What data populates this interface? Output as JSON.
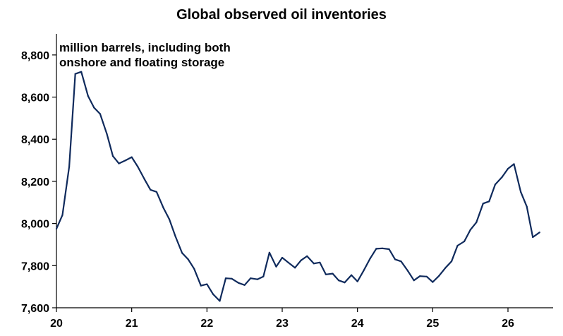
{
  "chart_data": {
    "type": "line",
    "title": "Global observed oil inventories",
    "annotation_lines": [
      "million barrels, including both",
      "onshore and floating storage"
    ],
    "xlabel": "",
    "ylabel": "",
    "xlim": [
      20,
      26.6
    ],
    "ylim": [
      7600,
      8900
    ],
    "x_ticks": [
      20,
      21,
      22,
      23,
      24,
      25,
      26
    ],
    "x_tick_labels": [
      "20",
      "21",
      "22",
      "23",
      "24",
      "25",
      "26"
    ],
    "y_ticks": [
      7600,
      7800,
      8000,
      8200,
      8400,
      8600,
      8800
    ],
    "y_tick_labels": [
      "7,600",
      "7,800",
      "8,000",
      "8,200",
      "8,400",
      "8,600",
      "8,800"
    ],
    "grid": false,
    "line_color": "#0f2a5c",
    "series": [
      {
        "values": [
          [
            20.0,
            7975
          ],
          [
            20.08,
            8040
          ],
          [
            20.17,
            8270
          ],
          [
            20.25,
            8710
          ],
          [
            20.33,
            8720
          ],
          [
            20.42,
            8605
          ],
          [
            20.5,
            8550
          ],
          [
            20.58,
            8520
          ],
          [
            20.67,
            8425
          ],
          [
            20.75,
            8320
          ],
          [
            20.83,
            8285
          ],
          [
            20.92,
            8300
          ],
          [
            21.0,
            8315
          ],
          [
            21.08,
            8270
          ],
          [
            21.17,
            8210
          ],
          [
            21.25,
            8160
          ],
          [
            21.33,
            8150
          ],
          [
            21.42,
            8075
          ],
          [
            21.5,
            8020
          ],
          [
            21.58,
            7940
          ],
          [
            21.67,
            7860
          ],
          [
            21.75,
            7830
          ],
          [
            21.83,
            7785
          ],
          [
            21.92,
            7705
          ],
          [
            22.0,
            7712
          ],
          [
            22.08,
            7665
          ],
          [
            22.17,
            7632
          ],
          [
            22.25,
            7740
          ],
          [
            22.33,
            7738
          ],
          [
            22.42,
            7718
          ],
          [
            22.5,
            7708
          ],
          [
            22.58,
            7740
          ],
          [
            22.67,
            7735
          ],
          [
            22.75,
            7748
          ],
          [
            22.83,
            7862
          ],
          [
            22.92,
            7795
          ],
          [
            23.0,
            7838
          ],
          [
            23.08,
            7815
          ],
          [
            23.17,
            7790
          ],
          [
            23.25,
            7825
          ],
          [
            23.33,
            7845
          ],
          [
            23.42,
            7810
          ],
          [
            23.5,
            7815
          ],
          [
            23.58,
            7758
          ],
          [
            23.67,
            7762
          ],
          [
            23.75,
            7730
          ],
          [
            23.83,
            7720
          ],
          [
            23.92,
            7755
          ],
          [
            24.0,
            7725
          ],
          [
            24.08,
            7775
          ],
          [
            24.17,
            7835
          ],
          [
            24.25,
            7880
          ],
          [
            24.33,
            7882
          ],
          [
            24.42,
            7878
          ],
          [
            24.5,
            7830
          ],
          [
            24.58,
            7820
          ],
          [
            24.67,
            7775
          ],
          [
            24.75,
            7730
          ],
          [
            24.83,
            7750
          ],
          [
            24.92,
            7748
          ],
          [
            25.0,
            7722
          ],
          [
            25.08,
            7750
          ],
          [
            25.17,
            7790
          ],
          [
            25.25,
            7820
          ],
          [
            25.33,
            7895
          ],
          [
            25.42,
            7915
          ],
          [
            25.5,
            7970
          ],
          [
            25.58,
            8005
          ],
          [
            25.67,
            8095
          ],
          [
            25.75,
            8105
          ],
          [
            25.83,
            8185
          ],
          [
            25.92,
            8220
          ],
          [
            26.0,
            8260
          ],
          [
            26.08,
            8282
          ],
          [
            26.17,
            8150
          ],
          [
            26.25,
            8080
          ],
          [
            26.33,
            7935
          ],
          [
            26.42,
            7958
          ]
        ]
      }
    ]
  }
}
